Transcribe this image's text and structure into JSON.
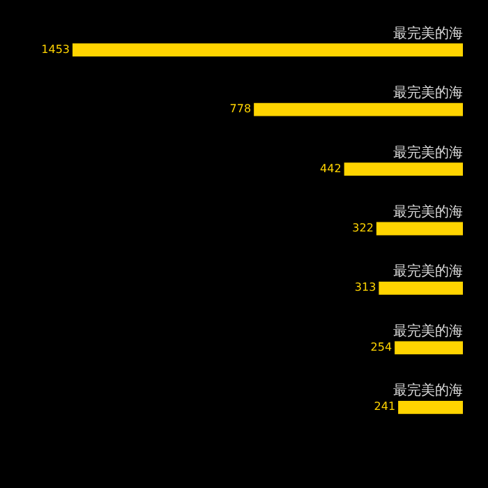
{
  "chart_data": {
    "type": "bar",
    "orientation": "horizontal",
    "categories": [
      "最完美的海",
      "最完美的海",
      "最完美的海",
      "最完美的海",
      "最完美的海",
      "最完美的海",
      "最完美的海"
    ],
    "values": [
      1453,
      778,
      442,
      322,
      313,
      254,
      241
    ],
    "color": "#ffd400",
    "data_labels": true
  }
}
